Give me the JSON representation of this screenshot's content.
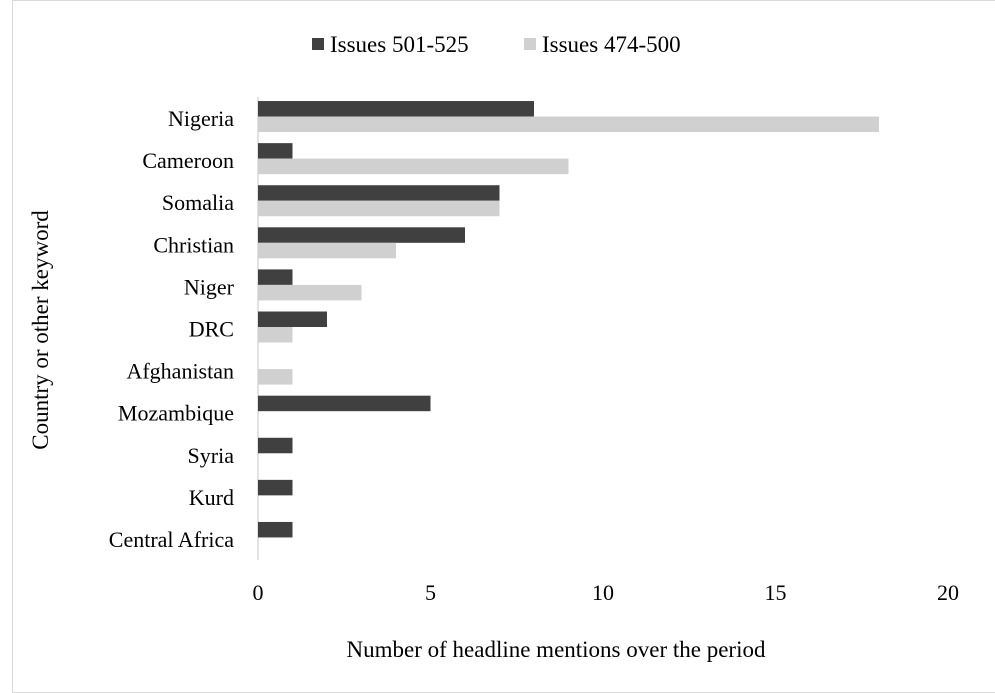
{
  "chart_data": {
    "type": "bar",
    "orientation": "horizontal",
    "categories": [
      "Nigeria",
      "Cameroon",
      "Somalia",
      "Christian",
      "Niger",
      "DRC",
      "Afghanistan",
      "Mozambique",
      "Syria",
      "Kurd",
      "Central Africa"
    ],
    "series": [
      {
        "name": "Issues 501-525",
        "color": "#404040",
        "values": [
          8,
          1,
          7,
          6,
          1,
          2,
          0,
          5,
          1,
          1,
          1
        ]
      },
      {
        "name": "Issues 474-500",
        "color": "#d0d0d0",
        "values": [
          18,
          9,
          7,
          4,
          3,
          1,
          1,
          0,
          0,
          0,
          0
        ]
      }
    ],
    "xlabel": "Number of headline mentions over the period",
    "ylabel": "Country or other keyword",
    "xlim": [
      0,
      20
    ],
    "xticks": [
      "0",
      "5",
      "10",
      "15",
      "20"
    ],
    "legend_position": "top",
    "grid": false
  }
}
